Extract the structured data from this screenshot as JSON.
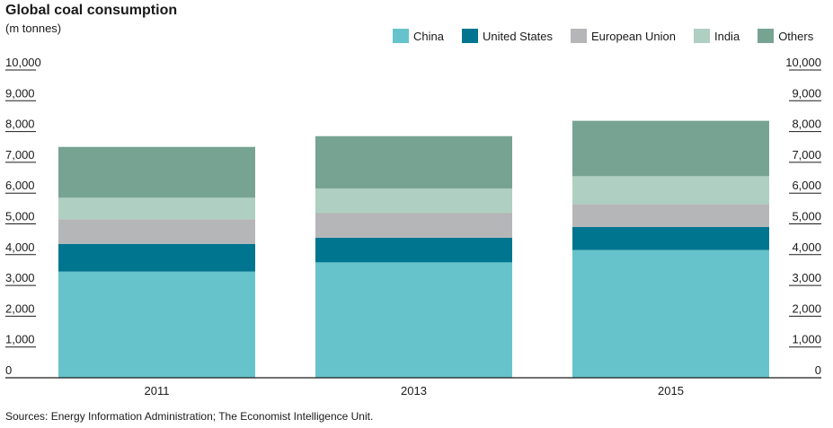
{
  "chart_data": {
    "type": "bar",
    "stacked": true,
    "title": "Global coal consumption",
    "subtitle": "(m tonnes)",
    "categories": [
      "2011",
      "2013",
      "2015"
    ],
    "series": [
      {
        "name": "China",
        "color": "#66c3cb",
        "values": [
          3450,
          3750,
          4150
        ]
      },
      {
        "name": "United States",
        "color": "#007590",
        "values": [
          900,
          800,
          750
        ]
      },
      {
        "name": "European Union",
        "color": "#b5b6b8",
        "values": [
          800,
          800,
          750
        ]
      },
      {
        "name": "India",
        "color": "#aecfc1",
        "values": [
          700,
          800,
          900
        ]
      },
      {
        "name": "Others",
        "color": "#77a393",
        "values": [
          1650,
          1700,
          1800
        ]
      }
    ],
    "yticks": [
      "0",
      "1,000",
      "2,000",
      "3,000",
      "4,000",
      "5,000",
      "6,000",
      "7,000",
      "8,000",
      "9,000",
      "10,000"
    ],
    "ylim": [
      0,
      10000
    ],
    "xlabel": "",
    "ylabel": ""
  },
  "source": "Sources: Energy Information Administration; The Economist Intelligence Unit."
}
